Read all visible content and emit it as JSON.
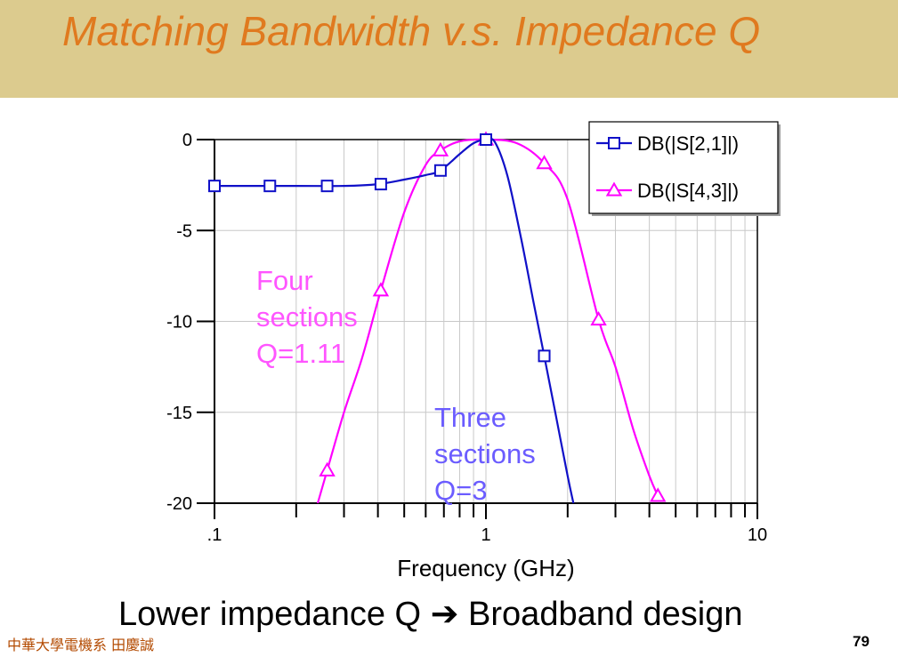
{
  "slide": {
    "title": "Matching Bandwidth v.s. Impedance Q",
    "conclusion_left": "Lower impedance Q",
    "conclusion_arrow": "➔",
    "conclusion_right": "Broadband design",
    "footer": "中華大學電機系 田慶誠",
    "page_number": "79"
  },
  "colors": {
    "title": "#e07a1f",
    "band": "#dccb8e",
    "series1": "#1010c8",
    "series2": "#ff00ff",
    "label1": "#6b5cff",
    "label2": "#ff55ff"
  },
  "chart_data": {
    "type": "line",
    "xscale": "log",
    "xlabel": "Frequency (GHz)",
    "ylabel": "",
    "xlim": [
      0.1,
      10
    ],
    "ylim": [
      -20,
      0
    ],
    "x_tick_labels": [
      {
        "value": 0.1,
        "label": ".1"
      },
      {
        "value": 1,
        "label": "1"
      },
      {
        "value": 10,
        "label": "10"
      }
    ],
    "y_ticks": [
      0,
      -5,
      -10,
      -15,
      -20
    ],
    "grid": true,
    "legend_position": "top-right",
    "series": [
      {
        "name": "DB(|S[2,1]|)",
        "marker": "square",
        "color": "#1010c8",
        "points": [
          [
            0.1,
            -2.55
          ],
          [
            0.2,
            -2.55
          ],
          [
            0.3,
            -2.55
          ],
          [
            0.4,
            -2.45
          ],
          [
            0.5,
            -2.2
          ],
          [
            0.6,
            -1.95
          ],
          [
            0.68,
            -1.7
          ],
          [
            0.8,
            -0.8
          ],
          [
            0.9,
            -0.2
          ],
          [
            1.0,
            0
          ],
          [
            1.08,
            -0.15
          ],
          [
            1.2,
            -2.0
          ],
          [
            1.35,
            -5.5
          ],
          [
            1.5,
            -9.0
          ],
          [
            1.64,
            -11.9
          ],
          [
            1.8,
            -15.0
          ],
          [
            2.0,
            -18.5
          ],
          [
            2.1,
            -20
          ]
        ],
        "markers": [
          [
            0.1,
            -2.55
          ],
          [
            0.16,
            -2.55
          ],
          [
            0.26,
            -2.55
          ],
          [
            0.41,
            -2.45
          ],
          [
            0.68,
            -1.7
          ],
          [
            1.0,
            0
          ],
          [
            1.64,
            -11.9
          ]
        ]
      },
      {
        "name": "DB(|S[4,3]|)",
        "marker": "triangle",
        "color": "#ff00ff",
        "points": [
          [
            0.24,
            -20
          ],
          [
            0.26,
            -18.2
          ],
          [
            0.3,
            -15.0
          ],
          [
            0.35,
            -12.0
          ],
          [
            0.41,
            -8.3
          ],
          [
            0.5,
            -4.0
          ],
          [
            0.6,
            -1.4
          ],
          [
            0.68,
            -0.6
          ],
          [
            0.8,
            -0.1
          ],
          [
            1.0,
            0
          ],
          [
            1.3,
            -0.2
          ],
          [
            1.64,
            -1.3
          ],
          [
            2.0,
            -3.3
          ],
          [
            2.6,
            -9.9
          ],
          [
            3.0,
            -12.5
          ],
          [
            3.5,
            -16.0
          ],
          [
            4.0,
            -18.5
          ],
          [
            4.3,
            -19.6
          ]
        ],
        "markers": [
          [
            0.26,
            -18.2
          ],
          [
            0.41,
            -8.3
          ],
          [
            0.68,
            -0.6
          ],
          [
            1.0,
            0
          ],
          [
            1.64,
            -1.3
          ],
          [
            2.6,
            -9.9
          ],
          [
            4.3,
            -19.6
          ]
        ]
      }
    ],
    "annotations": [
      {
        "id": "four",
        "lines": [
          "Four",
          "sections",
          "Q=1.11"
        ],
        "color": "#ff55ff"
      },
      {
        "id": "three",
        "lines": [
          "Three",
          "sections",
          "Q=3"
        ],
        "color": "#6b5cff"
      }
    ]
  }
}
